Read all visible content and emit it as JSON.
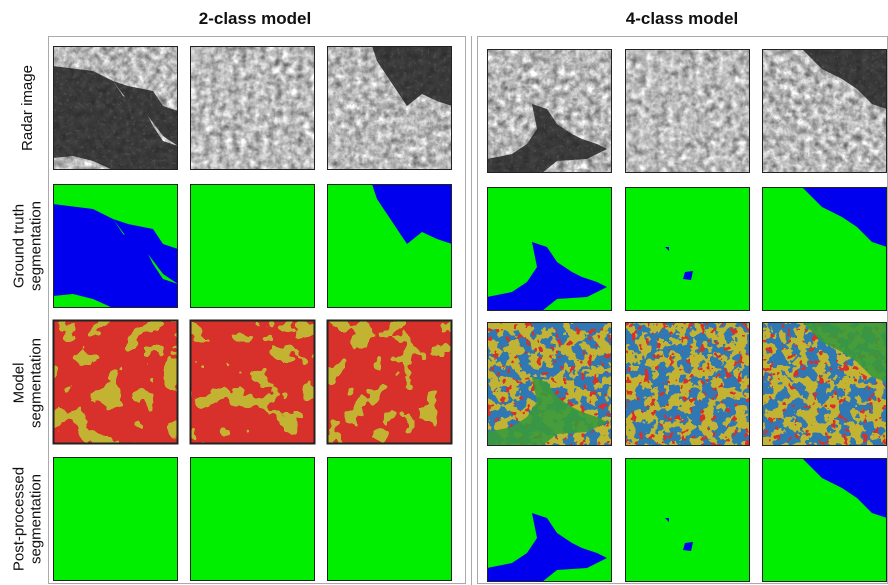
{
  "header": {
    "titles": [
      "2-class model",
      "4-class model"
    ]
  },
  "rows": [
    {
      "lines": [
        "Radar image"
      ]
    },
    {
      "lines": [
        "Ground truth",
        "segmentation"
      ]
    },
    {
      "lines": [
        "Model",
        "segmentation"
      ]
    },
    {
      "lines": [
        "Post-processed",
        "segmentation"
      ]
    }
  ]
}
